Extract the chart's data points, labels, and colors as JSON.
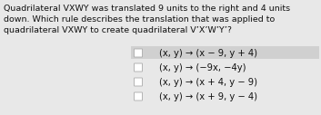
{
  "background_color": "#e8e8e8",
  "choice_highlight_color": "#d0d0d0",
  "text_color": "#111111",
  "question_lines": [
    "Quadrilateral VXWY was translated 9 units to the right and 4 units",
    "down. Which rule describes the translation that was applied to",
    "quadrilateral VXWY to create quadrilateral V’X’W’Y’?"
  ],
  "choices": [
    "(x, y) → (x − 9, y + 4)",
    "(x, y) → (−9x, −4y)",
    "(x, y) → (x + 4, y − 9)",
    "(x, y) → (x + 9, y − 4)"
  ],
  "choice_highlighted": [
    true,
    false,
    false,
    false
  ],
  "question_fontsize": 6.8,
  "choice_fontsize": 7.2,
  "fig_width": 3.53,
  "fig_height": 1.27,
  "dpi": 100
}
